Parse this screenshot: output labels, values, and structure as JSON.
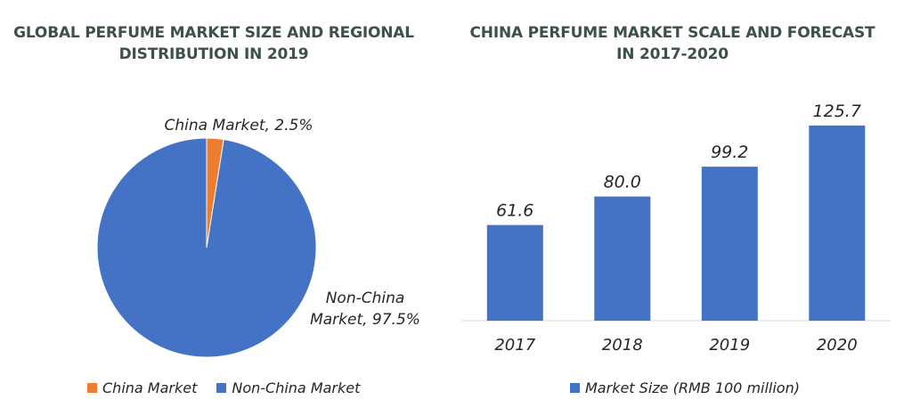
{
  "chart_data": [
    {
      "type": "pie",
      "title": "GLOBAL PERFUME MARKET SIZE AND REGIONAL DISTRIBUTION IN 2019",
      "slices": [
        {
          "name": "China Market",
          "value": 2.5,
          "label": "China Market, 2.5%",
          "color": "#ed7d31"
        },
        {
          "name": "Non-China Market",
          "value": 97.5,
          "label_line1": "Non-China",
          "label_line2": "Market, 97.5%",
          "color": "#4472c4"
        }
      ],
      "legend": [
        "China Market",
        "Non-China Market"
      ],
      "legend_position": "bottom"
    },
    {
      "type": "bar",
      "title": "CHINA PERFUME MARKET SCALE AND FORECAST IN 2017-2020",
      "categories": [
        "2017",
        "2018",
        "2019",
        "2020"
      ],
      "series": [
        {
          "name": "Market Size (RMB 100 million)",
          "values": [
            61.6,
            80.0,
            99.2,
            125.7
          ],
          "color": "#4472c4"
        }
      ],
      "value_labels": [
        "61.6",
        "80.0",
        "99.2",
        "125.7"
      ],
      "ylim": [
        0,
        140
      ],
      "grid": false,
      "legend_position": "bottom"
    }
  ]
}
